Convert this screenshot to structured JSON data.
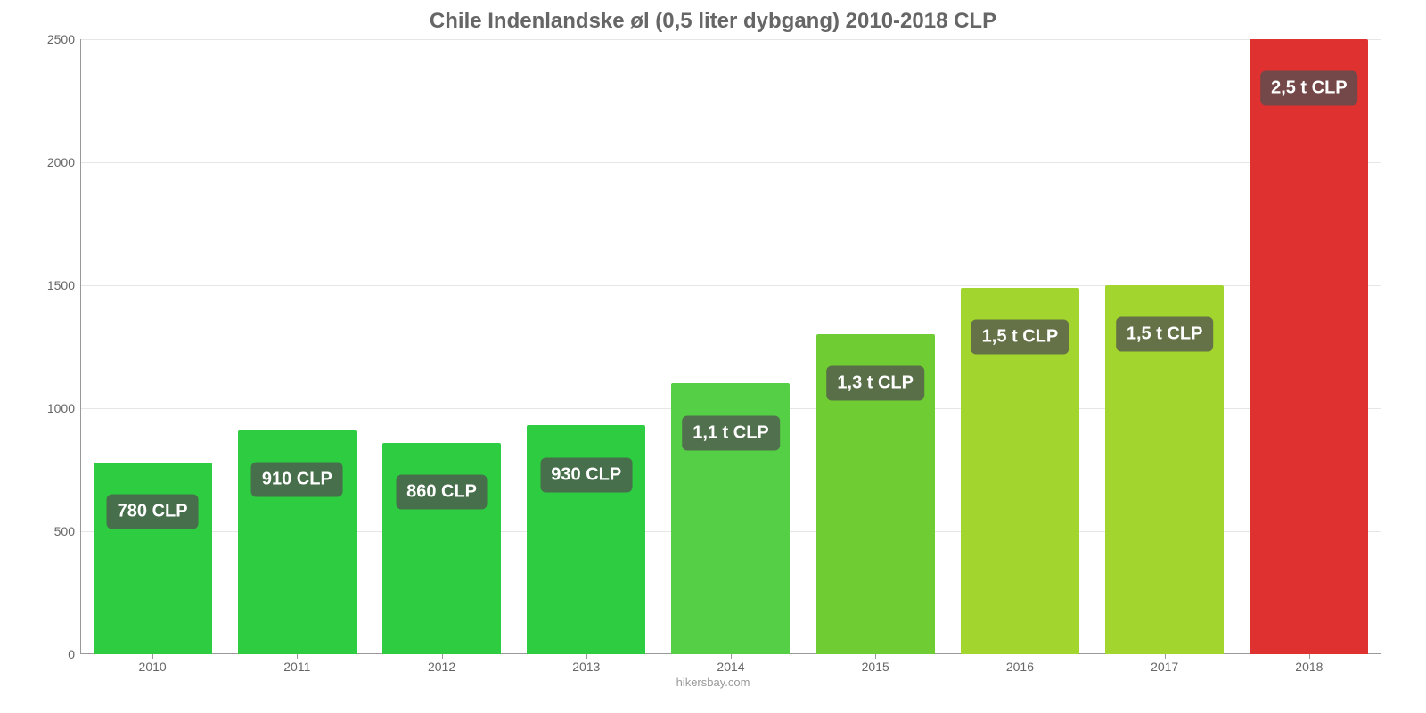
{
  "chart": {
    "type": "bar",
    "title": "Chile Indenlandske øl (0,5 liter dybgang) 2010-2018 CLP",
    "title_fontsize": 24,
    "title_color": "#666666",
    "background_color": "#ffffff",
    "grid_color": "#e6e6e6",
    "axis_color": "#999999",
    "tick_label_color": "#666666",
    "tick_fontsize": 14,
    "ylim": [
      0,
      2500
    ],
    "ytick_step": 500,
    "yticks": [
      0,
      500,
      1000,
      1500,
      2000,
      2500
    ],
    "categories": [
      "2010",
      "2011",
      "2012",
      "2013",
      "2014",
      "2015",
      "2016",
      "2017",
      "2018"
    ],
    "values": [
      780,
      910,
      860,
      930,
      1100,
      1300,
      1490,
      1500,
      2500
    ],
    "bar_labels": [
      "780 CLP",
      "910 CLP",
      "860 CLP",
      "930 CLP",
      "1,1 t CLP",
      "1,3 t CLP",
      "1,5 t CLP",
      "1,5 t CLP",
      "2,5 t CLP"
    ],
    "bar_colors": [
      "#2ecc40",
      "#2ecc40",
      "#2ecc40",
      "#2ecc40",
      "#55d046",
      "#70cc33",
      "#a3d52f",
      "#a3d52f",
      "#e03131"
    ],
    "bar_width_ratio": 0.82,
    "label_box_bg": "rgba(80,80,80,0.75)",
    "label_box_color": "#ffffff",
    "label_box_fontsize": 20,
    "source": "hikersbay.com",
    "source_color": "#999999",
    "source_fontsize": 13
  }
}
